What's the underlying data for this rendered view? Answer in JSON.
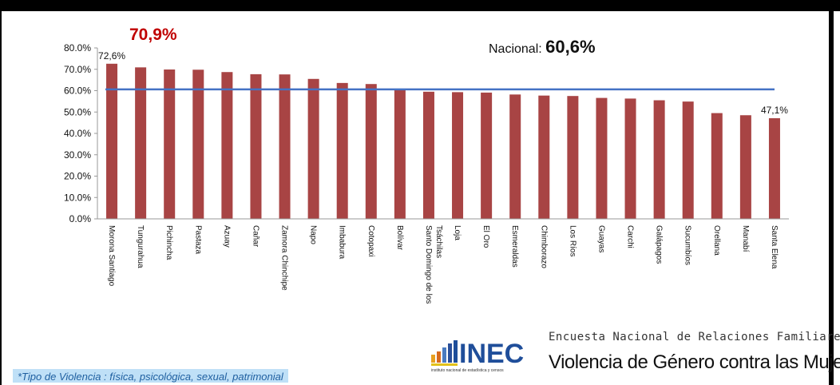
{
  "chart_data": {
    "type": "bar",
    "categories": [
      "Morona Santiago",
      "Tungurahua",
      "Pichincha",
      "Pastaza",
      "Azuay",
      "Cañar",
      "Zamora Chinchipe",
      "Napo",
      "Imbabura",
      "Cotopaxi",
      "Bolívar",
      "Santo Domingo de los Tsáchilas",
      "Loja",
      "El Oro",
      "Esmeraldas",
      "Chimborazo",
      "Los Ríos",
      "Guayas",
      "Carchi",
      "Galápagos",
      "Sucumbíos",
      "Orellana",
      "Manabí",
      "Santa Elena"
    ],
    "values": [
      72.6,
      70.9,
      69.9,
      69.8,
      68.7,
      67.7,
      67.6,
      65.5,
      63.6,
      63.1,
      60.2,
      59.5,
      59.3,
      59.1,
      58.2,
      57.7,
      57.5,
      56.6,
      56.3,
      55.5,
      54.9,
      49.5,
      48.5,
      47.1
    ],
    "yticks": [
      "0.0%",
      "10.0%",
      "20.0%",
      "30.0%",
      "40.0%",
      "50.0%",
      "60.0%",
      "70.0%",
      "80.0%"
    ],
    "ylim": [
      0,
      80
    ],
    "reference_line": 60.6,
    "data_labels": [
      {
        "index": 0,
        "text": "72,6%"
      },
      {
        "index": 23,
        "text": "47,1%"
      }
    ],
    "highlight_label": "70,9%",
    "national_label": "Nacional:",
    "national_value": "60,6%",
    "bar_color": "#a84444",
    "line_color": "#4472c4",
    "highlight_color": "#c00000"
  },
  "branding": {
    "logo_text": "INEC",
    "logo_subtext": "instituto nacional de estadística y censos",
    "survey_line1": "Encuesta Nacional de Relaciones Familiares y",
    "survey_line2": "Violencia de Género contra las Mujeres"
  },
  "footnote": "*Tipo de Violencia : física, psicológica, sexual, patrimonial",
  "colors": {
    "logo_bars": [
      "#e8a020",
      "#d86a1c",
      "#4a7bc0",
      "#2a4f9a",
      "#e3c21a"
    ],
    "logo_blue": "#1f4e9a"
  }
}
